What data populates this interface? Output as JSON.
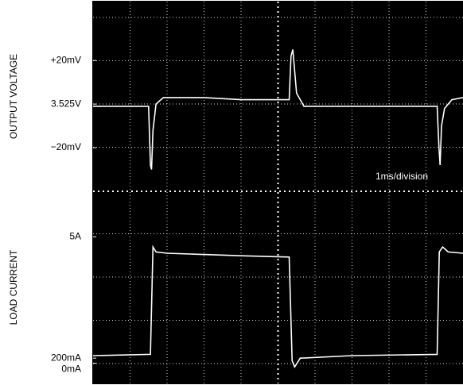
{
  "chart_data": [
    {
      "type": "line",
      "ylabel": "OUTPUT VOLTAGE",
      "annotation": "1ms/division",
      "xlim": [
        0,
        10
      ],
      "ylim": [
        -40,
        47
      ],
      "yticks": [
        {
          "value": 20,
          "label": "+20mV"
        },
        {
          "value": 0,
          "label": "3.525V"
        },
        {
          "value": -20,
          "label": "−20mV"
        }
      ],
      "x": [
        0,
        1.5,
        1.55,
        1.58,
        1.62,
        1.7,
        1.9,
        3,
        4,
        5.3,
        5.35,
        5.4,
        5.5,
        5.7,
        7,
        9.3,
        9.35,
        9.38,
        9.42,
        9.5,
        9.7,
        10
      ],
      "series": [
        {
          "color": "#ffffff",
          "values": [
            -1,
            -1,
            -28,
            -30,
            -12,
            0,
            3,
            3,
            2,
            2,
            22,
            25,
            5,
            -1,
            -1,
            -1,
            -20,
            -28,
            -10,
            -2,
            2,
            3
          ]
        }
      ]
    },
    {
      "type": "line",
      "ylabel": "LOAD CURRENT",
      "xlim": [
        0,
        10
      ],
      "ylim": [
        -0.8,
        6.8
      ],
      "yticks": [
        {
          "value": 5,
          "label": "5A"
        },
        {
          "value": 0.2,
          "label": "200mA"
        },
        {
          "value": 0,
          "label": "0mA"
        }
      ],
      "x": [
        0,
        1.55,
        1.62,
        1.7,
        2,
        3,
        4,
        5.3,
        5.38,
        5.45,
        5.6,
        7,
        9.3,
        9.36,
        9.45,
        9.6,
        10
      ],
      "series": [
        {
          "color": "#ffffff",
          "values": [
            0.3,
            0.35,
            4.6,
            4.4,
            4.35,
            4.3,
            4.25,
            4.2,
            0.1,
            -0.15,
            0.2,
            0.3,
            0.35,
            4.4,
            4.6,
            4.4,
            4.35
          ]
        }
      ]
    }
  ]
}
